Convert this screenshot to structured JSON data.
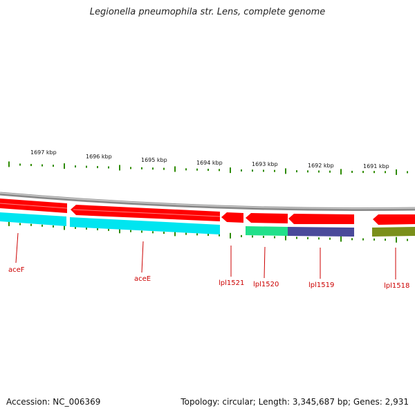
{
  "title": "Legionella pneumophila str. Lens, complete genome",
  "footer": {
    "accession": "Accession: NC_006369",
    "summary": "Topology: circular; Length: 3,345,687 bp; Genes: 2,931"
  },
  "colors": {
    "backbone": "#8a8a8a",
    "forward_cds": "#ff0000",
    "ticks": "#2e8b00",
    "label": "#cc0000",
    "cyan": "#00e5f0",
    "teal": "#20e08a",
    "navy": "#4a4a9a",
    "olive": "#7a8f1a"
  },
  "kbp_labels": [
    "1697 kbp",
    "1696 kbp",
    "1695 kbp",
    "1694 kbp",
    "1693 kbp",
    "1692 kbp",
    "1691 kbp"
  ],
  "genes": [
    {
      "name": "aceF"
    },
    {
      "name": "aceE"
    },
    {
      "name": "lpl1521"
    },
    {
      "name": "lpl1520"
    },
    {
      "name": "lpl1519"
    },
    {
      "name": "lpl1518"
    }
  ]
}
